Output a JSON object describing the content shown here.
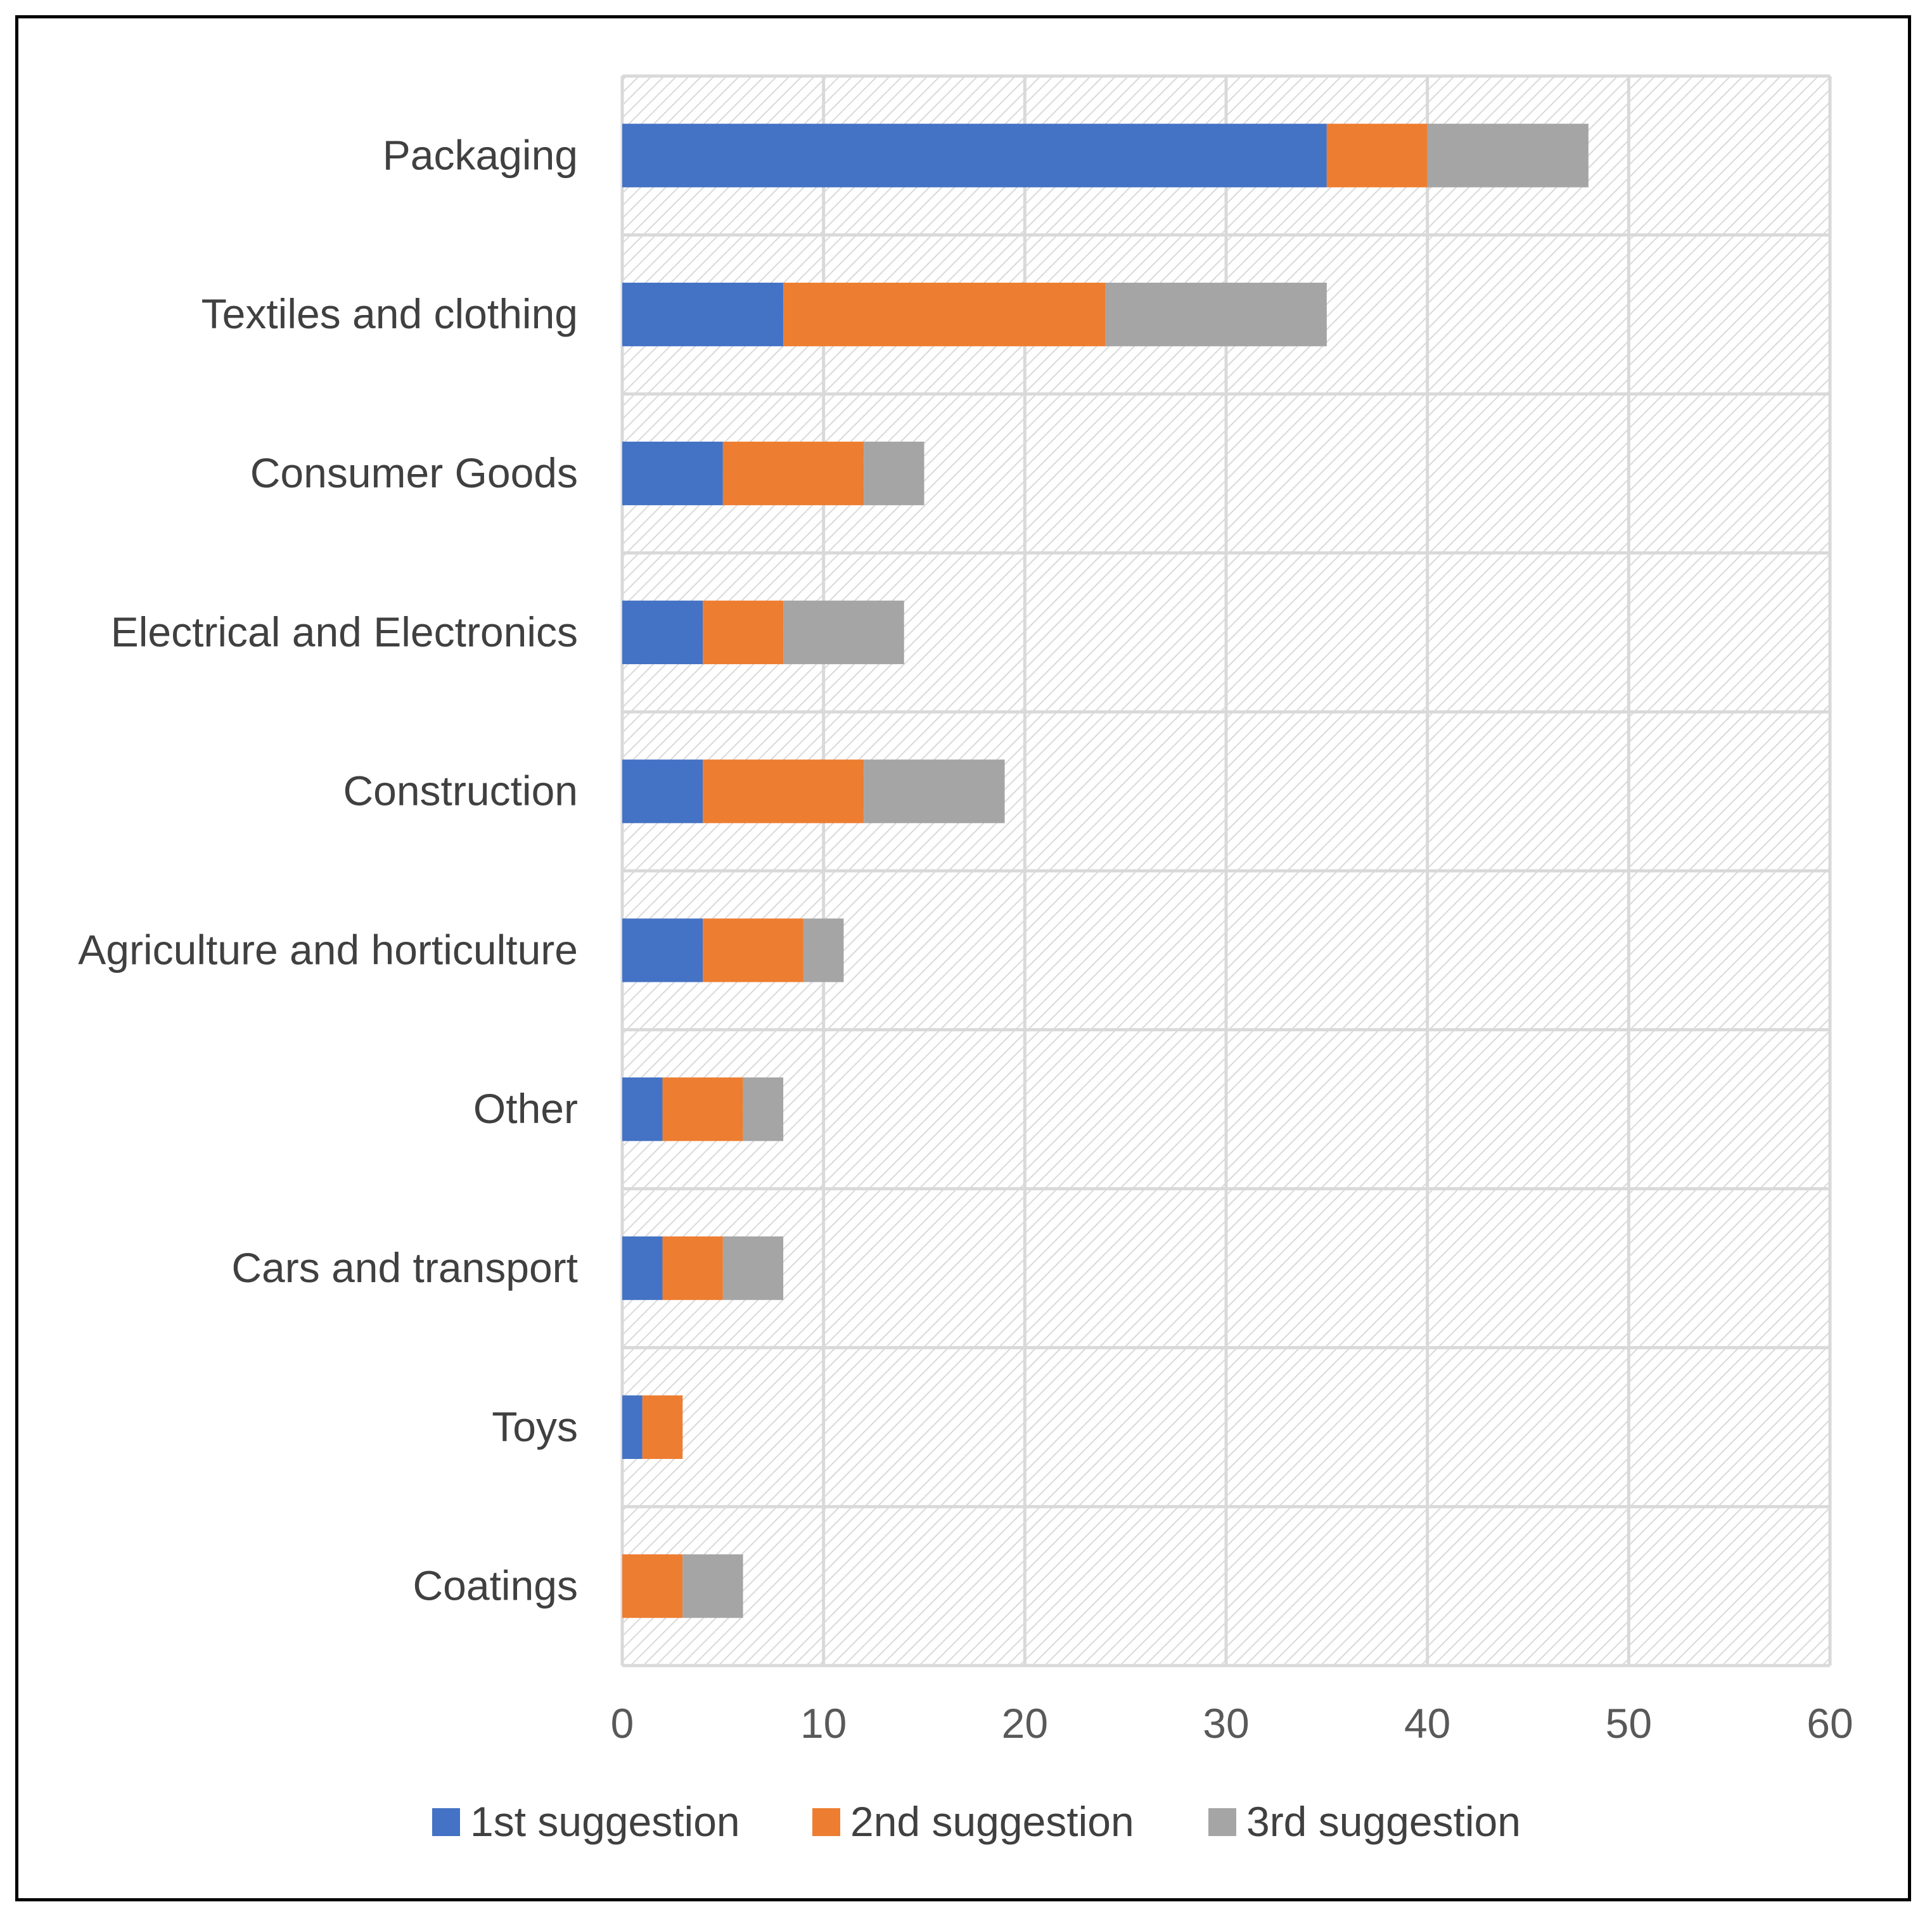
{
  "chart_data": {
    "type": "bar",
    "orientation": "horizontal",
    "stacked": true,
    "categories": [
      "Packaging",
      "Textiles and clothing",
      "Consumer Goods",
      "Electrical and Electronics",
      "Construction",
      "Agriculture and horticulture",
      "Other",
      "Cars and transport",
      "Toys",
      "Coatings"
    ],
    "series": [
      {
        "name": "1st suggestion",
        "color": "#4472C4",
        "values": [
          35,
          8,
          5,
          4,
          4,
          4,
          2,
          2,
          1,
          0
        ]
      },
      {
        "name": "2nd suggestion",
        "color": "#ED7D31",
        "values": [
          5,
          16,
          7,
          4,
          8,
          5,
          4,
          3,
          2,
          3
        ]
      },
      {
        "name": "3rd suggestion",
        "color": "#A5A5A5",
        "values": [
          8,
          11,
          3,
          6,
          7,
          2,
          2,
          3,
          0,
          3
        ]
      }
    ],
    "xlim": [
      0,
      60
    ],
    "xticks": [
      "0",
      "10",
      "20",
      "30",
      "40",
      "50",
      "60"
    ],
    "title": "",
    "xlabel": "",
    "ylabel": "",
    "grid": true,
    "legend_position": "bottom",
    "plot_background": "light diagonal hatch"
  }
}
